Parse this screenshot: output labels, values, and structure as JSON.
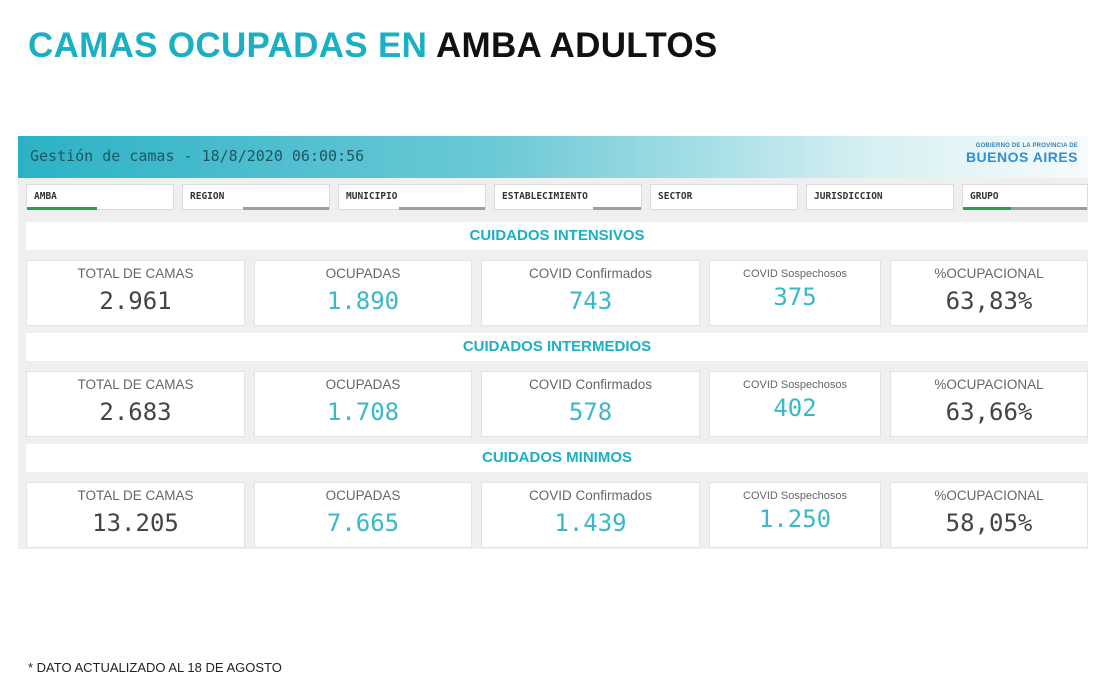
{
  "page": {
    "title_part1": "CAMAS OCUPADAS EN",
    "title_part2": "AMBA ADULTOS",
    "footnote": "* DATO ACTUALIZADO AL 18 DE AGOSTO"
  },
  "dashboard": {
    "title": "Gestión de camas - 18/8/2020 06:00:56",
    "logo_small": "GOBIERNO DE LA PROVINCIA DE",
    "logo_big": "BUENOS AIRES",
    "filters": [
      "AMBA",
      "REGION",
      "MUNICIPIO",
      "ESTABLECIMIENTO",
      "SECTOR",
      "JURISDICCION",
      "GRUPO"
    ]
  },
  "labels": {
    "total": "TOTAL DE CAMAS",
    "ocupadas": "OCUPADAS",
    "covid_conf": "COVID Confirmados",
    "covid_sosp": "COVID Sospechosos",
    "ocupacional": "%OCUPACIONAL"
  },
  "sections": [
    {
      "title": "CUIDADOS INTENSIVOS",
      "total": "2.961",
      "ocupadas": "1.890",
      "covid_conf": "743",
      "covid_sosp": "375",
      "ocupacional": "63,83%"
    },
    {
      "title": "CUIDADOS INTERMEDIOS",
      "total": "2.683",
      "ocupadas": "1.708",
      "covid_conf": "578",
      "covid_sosp": "402",
      "ocupacional": "63,66%"
    },
    {
      "title": "CUIDADOS MINIMOS",
      "total": "13.205",
      "ocupadas": "7.665",
      "covid_conf": "1.439",
      "covid_sosp": "1.250",
      "ocupacional": "58,05%"
    }
  ],
  "colors": {
    "accent": "#1ab0c4",
    "value_teal": "#39b8c6",
    "filter_green": "#2e9e4a"
  }
}
